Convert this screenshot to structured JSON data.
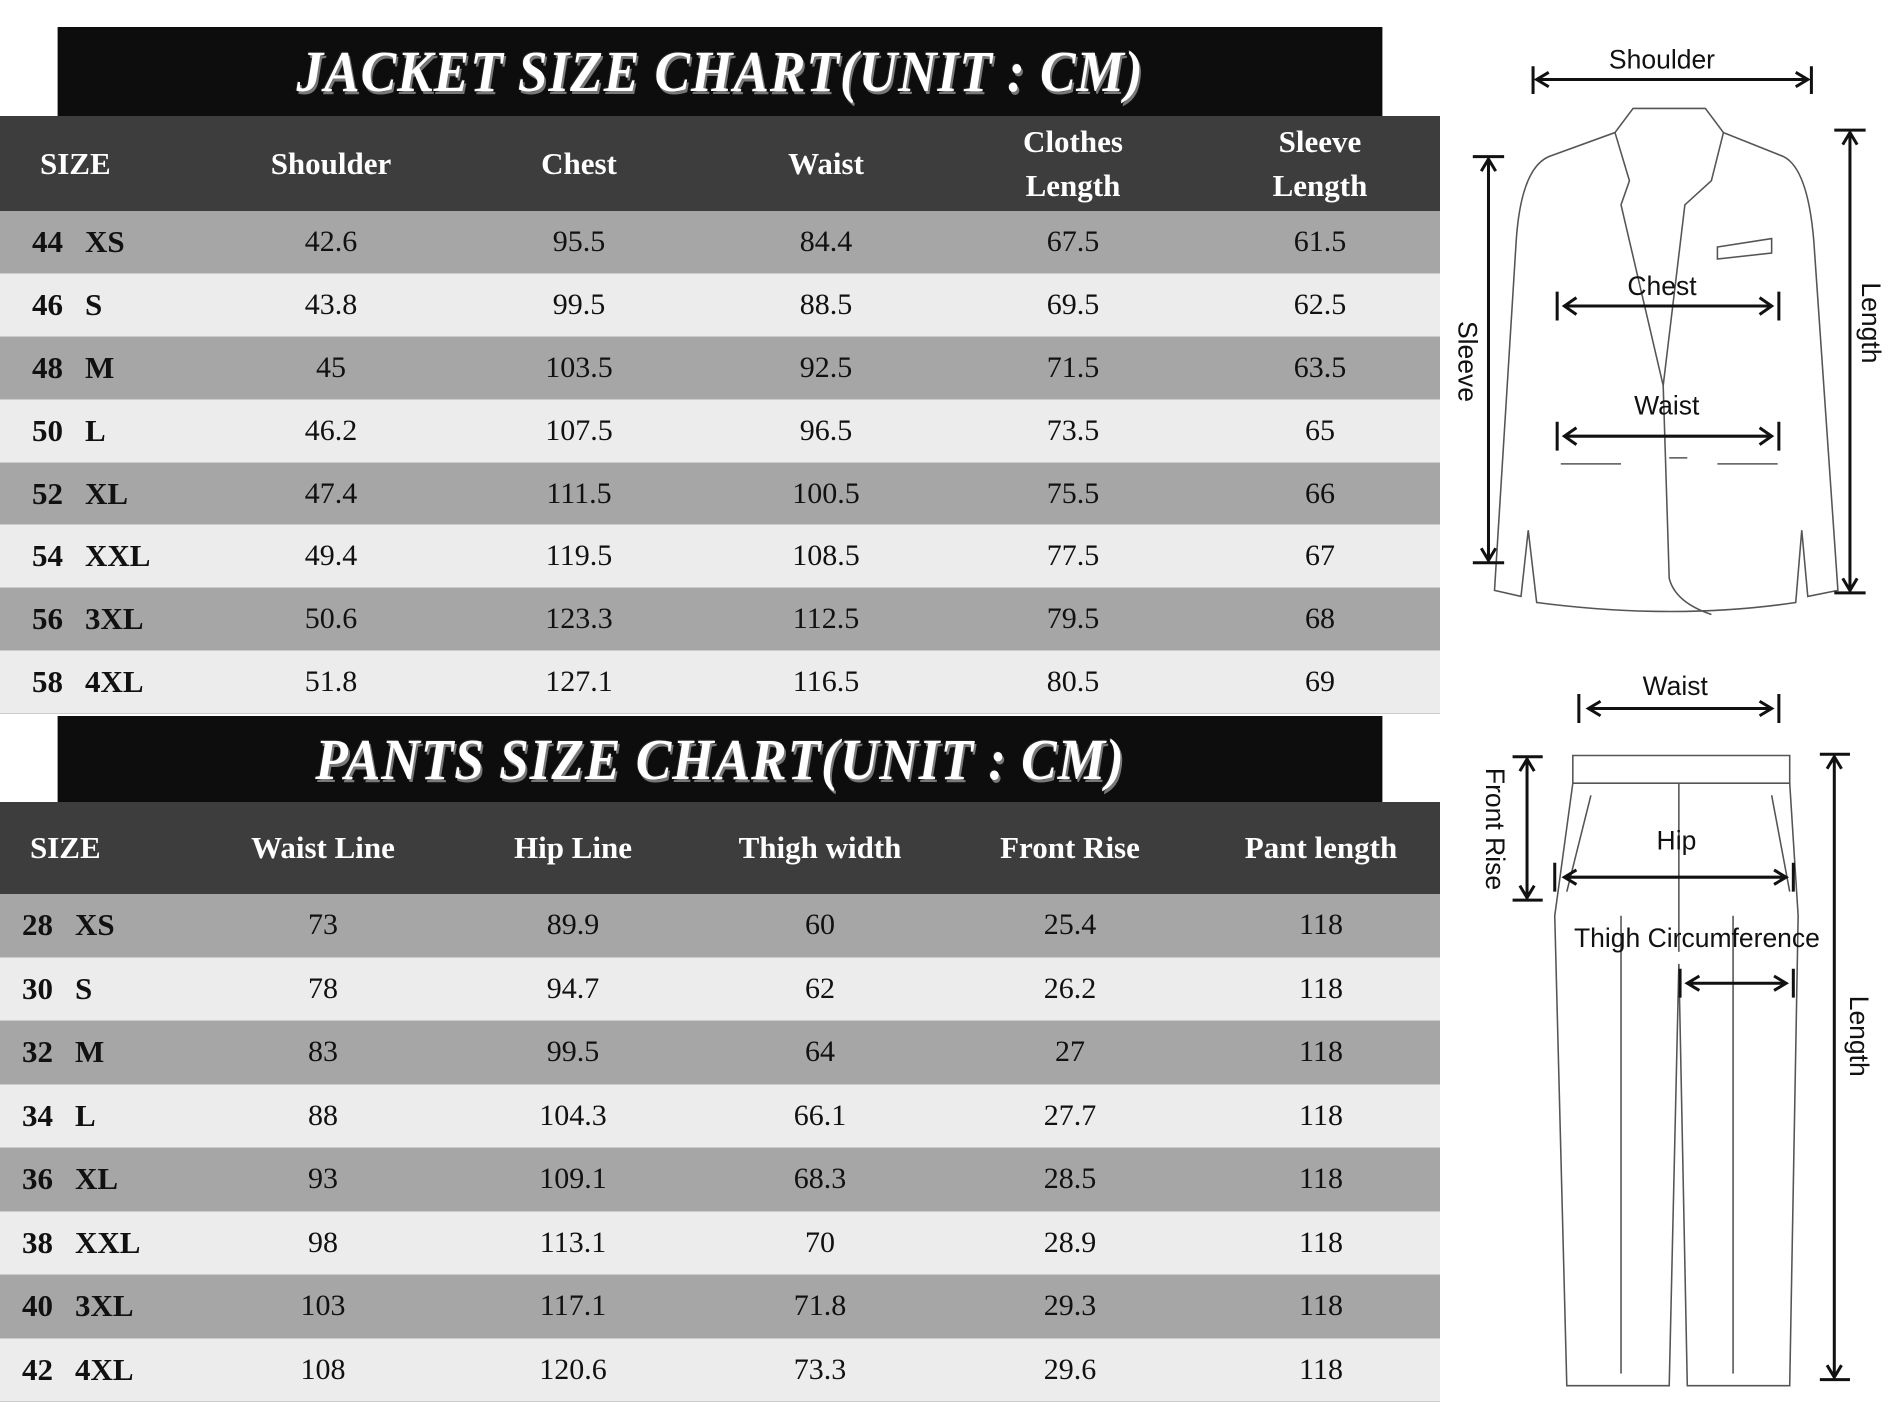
{
  "jacket": {
    "title": "JACKET SIZE CHART(UNIT : CM)",
    "headers": [
      "SIZE",
      "Shoulder",
      "Chest",
      "Waist",
      "Clothes\nLength",
      "Sleeve\nLength"
    ],
    "rows": [
      {
        "num": "44",
        "size": "XS",
        "values": [
          "42.6",
          "95.5",
          "84.4",
          "67.5",
          "61.5"
        ]
      },
      {
        "num": "46",
        "size": "S",
        "values": [
          "43.8",
          "99.5",
          "88.5",
          "69.5",
          "62.5"
        ]
      },
      {
        "num": "48",
        "size": "M",
        "values": [
          "45",
          "103.5",
          "92.5",
          "71.5",
          "63.5"
        ]
      },
      {
        "num": "50",
        "size": "L",
        "values": [
          "46.2",
          "107.5",
          "96.5",
          "73.5",
          "65"
        ]
      },
      {
        "num": "52",
        "size": "XL",
        "values": [
          "47.4",
          "111.5",
          "100.5",
          "75.5",
          "66"
        ]
      },
      {
        "num": "54",
        "size": "XXL",
        "values": [
          "49.4",
          "119.5",
          "108.5",
          "77.5",
          "67"
        ]
      },
      {
        "num": "56",
        "size": "3XL",
        "values": [
          "50.6",
          "123.3",
          "112.5",
          "79.5",
          "68"
        ]
      },
      {
        "num": "58",
        "size": "4XL",
        "values": [
          "51.8",
          "127.1",
          "116.5",
          "80.5",
          "69"
        ]
      }
    ]
  },
  "pants": {
    "title": "PANTS SIZE CHART(UNIT : CM)",
    "headers": [
      "SIZE",
      "Waist Line",
      "Hip Line",
      "Thigh width",
      "Front Rise",
      "Pant length"
    ],
    "rows": [
      {
        "num": "28",
        "size": "XS",
        "values": [
          "73",
          "89.9",
          "60",
          "25.4",
          "118"
        ]
      },
      {
        "num": "30",
        "size": "S",
        "values": [
          "78",
          "94.7",
          "62",
          "26.2",
          "118"
        ]
      },
      {
        "num": "32",
        "size": "M",
        "values": [
          "83",
          "99.5",
          "64",
          "27",
          "118"
        ]
      },
      {
        "num": "34",
        "size": "L",
        "values": [
          "88",
          "104.3",
          "66.1",
          "27.7",
          "118"
        ]
      },
      {
        "num": "36",
        "size": "XL",
        "values": [
          "93",
          "109.1",
          "68.3",
          "28.5",
          "118"
        ]
      },
      {
        "num": "38",
        "size": "XXL",
        "values": [
          "98",
          "113.1",
          "70",
          "28.9",
          "118"
        ]
      },
      {
        "num": "40",
        "size": "3XL",
        "values": [
          "103",
          "117.1",
          "71.8",
          "29.3",
          "118"
        ]
      },
      {
        "num": "42",
        "size": "4XL",
        "values": [
          "108",
          "120.6",
          "73.3",
          "29.6",
          "118"
        ]
      }
    ]
  },
  "diagram": {
    "jacket_labels": {
      "shoulder": "Shoulder",
      "chest": "Chest",
      "waist": "Waist",
      "sleeve": "Sleeve",
      "length": "Length"
    },
    "pants_labels": {
      "waist": "Waist",
      "hip": "Hip",
      "front_rise": "Front Rise",
      "thigh": "Thigh Circumference",
      "length": "Length"
    }
  },
  "colors": {
    "title_bg": "#0d0d0d",
    "header_bg": "#3d3d3d",
    "row_dark": "#a6a6a6",
    "row_light": "#ececec"
  }
}
